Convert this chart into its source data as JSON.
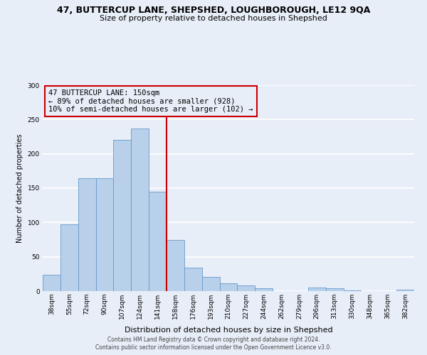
{
  "title": "47, BUTTERCUP LANE, SHEPSHED, LOUGHBOROUGH, LE12 9QA",
  "subtitle": "Size of property relative to detached houses in Shepshed",
  "xlabel": "Distribution of detached houses by size in Shepshed",
  "ylabel": "Number of detached properties",
  "bar_labels": [
    "38sqm",
    "55sqm",
    "72sqm",
    "90sqm",
    "107sqm",
    "124sqm",
    "141sqm",
    "158sqm",
    "176sqm",
    "193sqm",
    "210sqm",
    "227sqm",
    "244sqm",
    "262sqm",
    "279sqm",
    "296sqm",
    "313sqm",
    "330sqm",
    "348sqm",
    "365sqm",
    "382sqm"
  ],
  "bar_values": [
    24,
    97,
    165,
    165,
    220,
    237,
    145,
    75,
    34,
    21,
    11,
    8,
    4,
    0,
    0,
    5,
    4,
    1,
    0,
    0,
    2
  ],
  "bar_color": "#b8d0ea",
  "bar_edgecolor": "#6699cc",
  "ylim": [
    0,
    300
  ],
  "yticks": [
    0,
    50,
    100,
    150,
    200,
    250,
    300
  ],
  "vline_x": 6.5,
  "vline_color": "#cc0000",
  "annotation_title": "47 BUTTERCUP LANE: 150sqm",
  "annotation_line1": "← 89% of detached houses are smaller (928)",
  "annotation_line2": "10% of semi-detached houses are larger (102) →",
  "annotation_box_edgecolor": "#cc0000",
  "footer_line1": "Contains HM Land Registry data © Crown copyright and database right 2024.",
  "footer_line2": "Contains public sector information licensed under the Open Government Licence v3.0.",
  "background_color": "#e8eef8",
  "grid_color": "#ffffff",
  "title_fontsize": 9,
  "subtitle_fontsize": 8,
  "xlabel_fontsize": 8,
  "ylabel_fontsize": 7,
  "tick_fontsize": 6.5,
  "annotation_fontsize": 7.5,
  "footer_fontsize": 5.5
}
